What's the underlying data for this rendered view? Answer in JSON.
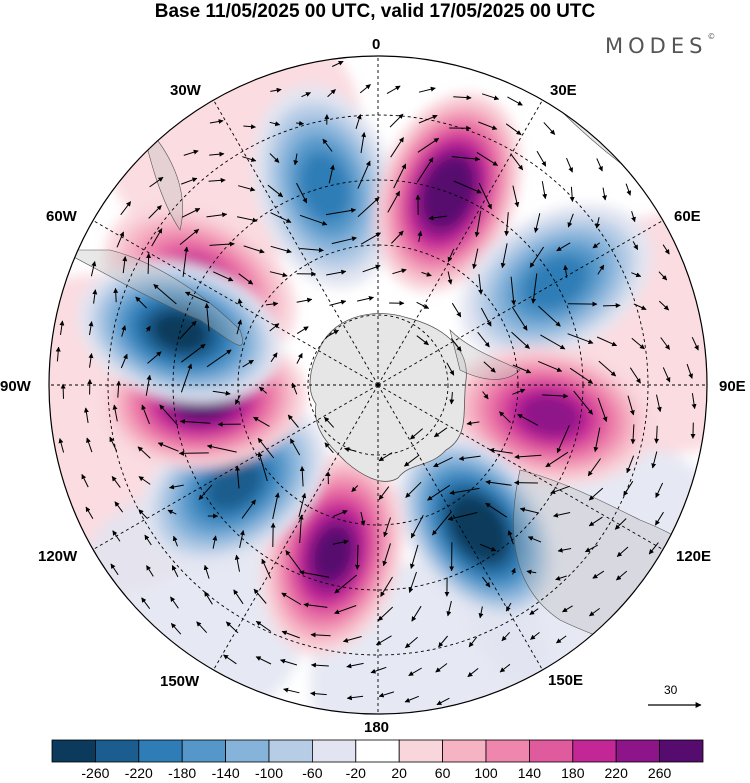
{
  "title": "Base 11/05/2025 00 UTC, valid 17/05/2025 00 UTC",
  "brand": "MODES",
  "brand_mark": "©",
  "longitude_labels": {
    "top": "0",
    "top_right": "30E",
    "upper_right": "60E",
    "right": "90E",
    "lower_right": "120E",
    "bottom_right": "150E",
    "bottom": "180",
    "bottom_left": "150W",
    "lower_left": "120W",
    "left": "90W",
    "upper_left": "60W",
    "top_left": "30W"
  },
  "vector_reference": {
    "label": "30",
    "icon": "arrow-right-icon"
  },
  "colorbar": {
    "labels": [
      "-260",
      "-220",
      "-180",
      "-140",
      "-100",
      "-60",
      "-20",
      "20",
      "60",
      "100",
      "140",
      "180",
      "220",
      "260"
    ],
    "colors": [
      "#0b3a5c",
      "#1a5d8e",
      "#2f7db6",
      "#5597c9",
      "#86b3da",
      "#b7cde6",
      "#e2e5f1",
      "#ffffff",
      "#f9d6dc",
      "#f5b3c4",
      "#ef86ad",
      "#e05a9e",
      "#c32796",
      "#8e1489",
      "#560c6e"
    ]
  },
  "map": {
    "projection": "south-polar-stereographic",
    "land_color": "#bdbdbd",
    "land_alpha": 0.35,
    "anomaly_centers": [
      {
        "lon": -60,
        "lat_ring": "outer",
        "sign": "positive",
        "max": 140
      },
      {
        "lon": -15,
        "lat_ring": "outer",
        "sign": "negative",
        "max": -140
      },
      {
        "lon": 20,
        "lat_ring": "outer",
        "sign": "positive",
        "max": 260
      },
      {
        "lon": 60,
        "lat_ring": "outer",
        "sign": "negative",
        "max": -140
      },
      {
        "lon": 100,
        "lat_ring": "mid",
        "sign": "positive",
        "max": 180
      },
      {
        "lon": 145,
        "lat_ring": "mid",
        "sign": "negative",
        "max": -260
      },
      {
        "lon": -165,
        "lat_ring": "mid",
        "sign": "positive",
        "max": 220
      },
      {
        "lon": -125,
        "lat_ring": "mid",
        "sign": "negative",
        "max": -180
      },
      {
        "lon": -95,
        "lat_ring": "mid",
        "sign": "positive",
        "max": 220
      },
      {
        "lon": -75,
        "lat_ring": "outer",
        "sign": "negative",
        "max": -220
      }
    ]
  }
}
